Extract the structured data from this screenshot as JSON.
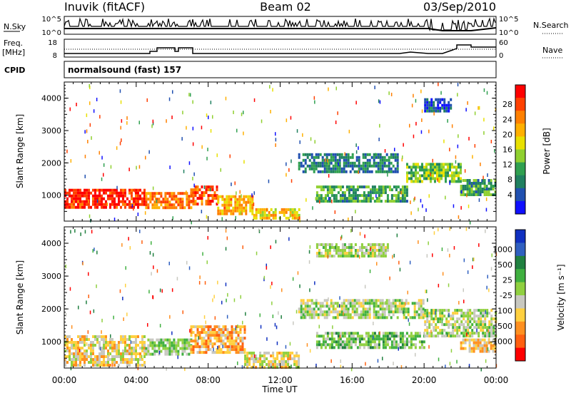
{
  "header": {
    "station": "Inuvik (fitACF)",
    "beam": "Beam 02",
    "date": "03/Sep/2010"
  },
  "strip": {
    "nsky_label": "N.Sky",
    "nsky_ticks": [
      "10^5",
      "10^0"
    ],
    "nsearch_label": "N.Search",
    "nsearch_ticks": [
      "10^5",
      "10^0"
    ],
    "freq_label": "Freq.",
    "freq_unit": "[MHz]",
    "freq_ticks": [
      "18",
      "8"
    ],
    "nave_label": "Nave",
    "nave_ticks": [
      "60",
      "0"
    ],
    "cpid_label": "CPID",
    "cpid_value": "normalsound (fast) 157"
  },
  "chart_data": [
    {
      "type": "heatmap",
      "title": "",
      "xlabel": "Time UT",
      "ylabel": "Slant Range [km]",
      "xlim": [
        "00:00",
        "24:00"
      ],
      "ylim": [
        200,
        4500
      ],
      "x_ticks": [
        "00:00",
        "04:00",
        "08:00",
        "12:00",
        "16:00",
        "20:00",
        "00:00"
      ],
      "y_ticks": [
        "1000",
        "2000",
        "3000",
        "4000"
      ],
      "colorbar": {
        "label": "Power [dB]",
        "ticks": [
          "28",
          "24",
          "20",
          "16",
          "12",
          "8",
          "4"
        ],
        "colors": [
          "#ff0000",
          "#ff4000",
          "#ff8000",
          "#ffb000",
          "#e8e000",
          "#90d030",
          "#30a050",
          "#208060",
          "#2050b0",
          "#1010ff"
        ]
      },
      "bands": [
        {
          "t0": 0.0,
          "t1": 4.5,
          "r0": 600,
          "r1": 1200,
          "value": 26
        },
        {
          "t0": 4.5,
          "t1": 7.0,
          "r0": 600,
          "r1": 1100,
          "value": 22
        },
        {
          "t0": 7.0,
          "t1": 8.5,
          "r0": 700,
          "r1": 1300,
          "value": 24
        },
        {
          "t0": 8.5,
          "t1": 10.5,
          "r0": 400,
          "r1": 1000,
          "value": 20
        },
        {
          "t0": 10.5,
          "t1": 13.0,
          "r0": 250,
          "r1": 600,
          "value": 18
        },
        {
          "t0": 13.0,
          "t1": 18.5,
          "r0": 1700,
          "r1": 2300,
          "value": 10
        },
        {
          "t0": 14.0,
          "t1": 19.0,
          "r0": 800,
          "r1": 1300,
          "value": 12
        },
        {
          "t0": 19.0,
          "t1": 22.0,
          "r0": 1400,
          "r1": 2000,
          "value": 14
        },
        {
          "t0": 22.0,
          "t1": 24.0,
          "r0": 1000,
          "r1": 1500,
          "value": 12
        },
        {
          "t0": 20.0,
          "t1": 21.5,
          "r0": 3600,
          "r1": 4000,
          "value": 8
        }
      ]
    },
    {
      "type": "heatmap",
      "title": "",
      "xlabel": "Time UT",
      "ylabel": "Slant Range [km]",
      "xlim": [
        "00:00",
        "24:00"
      ],
      "ylim": [
        200,
        4500
      ],
      "x_ticks": [
        "00:00",
        "04:00",
        "08:00",
        "12:00",
        "16:00",
        "20:00",
        "00:00"
      ],
      "y_ticks": [
        "1000",
        "2000",
        "3000",
        "4000"
      ],
      "colorbar": {
        "label": "Velocity [m s⁻¹]",
        "ticks": [
          "1000",
          "500",
          "25",
          "-25",
          "-100",
          "-500",
          "-1000"
        ],
        "colors": [
          "#1030c0",
          "#3060c0",
          "#208040",
          "#40b040",
          "#90d040",
          "#c8c8c0",
          "#ffd040",
          "#ff9020",
          "#ff6010",
          "#ff0000"
        ]
      },
      "bands": [
        {
          "t0": 0.0,
          "t1": 4.5,
          "r0": 300,
          "r1": 1200,
          "value": -200
        },
        {
          "t0": 4.5,
          "t1": 7.0,
          "r0": 600,
          "r1": 1100,
          "value": 100
        },
        {
          "t0": 7.0,
          "t1": 10.0,
          "r0": 700,
          "r1": 1500,
          "value": -400
        },
        {
          "t0": 10.0,
          "t1": 13.0,
          "r0": 250,
          "r1": 700,
          "value": -150
        },
        {
          "t0": 13.0,
          "t1": 20.0,
          "r0": 1700,
          "r1": 2300,
          "value": 0
        },
        {
          "t0": 14.0,
          "t1": 20.0,
          "r0": 800,
          "r1": 1300,
          "value": 200
        },
        {
          "t0": 20.0,
          "t1": 24.0,
          "r0": 1200,
          "r1": 2000,
          "value": 0
        },
        {
          "t0": 22.0,
          "t1": 24.0,
          "r0": 700,
          "r1": 1100,
          "value": -300
        },
        {
          "t0": 14.0,
          "t1": 18.0,
          "r0": 3600,
          "r1": 4000,
          "value": 0
        }
      ]
    }
  ]
}
